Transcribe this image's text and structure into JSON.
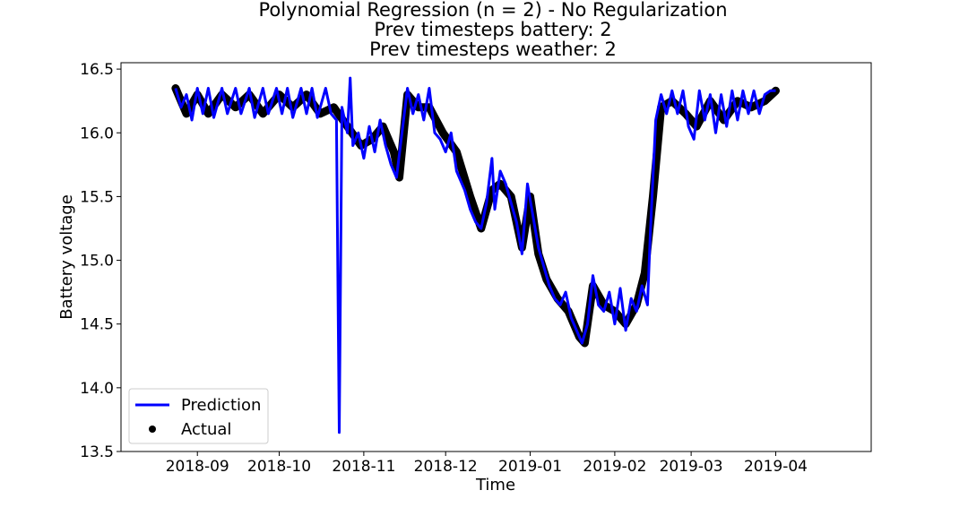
{
  "chart_data": {
    "type": "line",
    "title": [
      "Polynomial Regression (n = 2) - No Regularization",
      "Prev timesteps battery: 2",
      "Prev timesteps weather: 2"
    ],
    "xlabel": "Time",
    "ylabel": "Battery voltage",
    "ylim": [
      13.5,
      16.55
    ],
    "xlim": [
      "2018-08-04",
      "2019-05-06"
    ],
    "x_ticks": [
      "2018-09",
      "2018-10",
      "2018-11",
      "2018-12",
      "2019-01",
      "2019-02",
      "2019-03",
      "2019-04"
    ],
    "y_ticks": [
      "13.5",
      "14.0",
      "14.5",
      "15.0",
      "15.5",
      "16.0",
      "16.5"
    ],
    "grid": false,
    "legend": {
      "placement": "lower-left",
      "entries": [
        "Prediction",
        "Actual"
      ]
    },
    "colors": {
      "prediction": "#0000ff",
      "actual": "#000000"
    },
    "series": [
      {
        "name": "Actual",
        "marker": "dot",
        "points": [
          [
            "2018-08-24",
            16.35
          ],
          [
            "2018-08-28",
            16.15
          ],
          [
            "2018-09-01",
            16.3
          ],
          [
            "2018-09-05",
            16.15
          ],
          [
            "2018-09-10",
            16.3
          ],
          [
            "2018-09-15",
            16.2
          ],
          [
            "2018-09-20",
            16.3
          ],
          [
            "2018-09-25",
            16.15
          ],
          [
            "2018-10-01",
            16.3
          ],
          [
            "2018-10-06",
            16.2
          ],
          [
            "2018-10-11",
            16.3
          ],
          [
            "2018-10-16",
            16.15
          ],
          [
            "2018-10-21",
            16.2
          ],
          [
            "2018-10-26",
            16.05
          ],
          [
            "2018-10-31",
            15.9
          ],
          [
            "2018-11-04",
            15.95
          ],
          [
            "2018-11-08",
            16.05
          ],
          [
            "2018-11-12",
            15.85
          ],
          [
            "2018-11-14",
            15.65
          ],
          [
            "2018-11-17",
            16.3
          ],
          [
            "2018-11-21",
            16.2
          ],
          [
            "2018-11-25",
            16.2
          ],
          [
            "2018-11-30",
            16.0
          ],
          [
            "2018-12-05",
            15.85
          ],
          [
            "2018-12-10",
            15.5
          ],
          [
            "2018-12-14",
            15.25
          ],
          [
            "2018-12-18",
            15.55
          ],
          [
            "2018-12-21",
            15.6
          ],
          [
            "2018-12-25",
            15.5
          ],
          [
            "2018-12-29",
            15.1
          ],
          [
            "2019-01-01",
            15.5
          ],
          [
            "2019-01-04",
            15.05
          ],
          [
            "2019-01-07",
            14.85
          ],
          [
            "2019-01-11",
            14.7
          ],
          [
            "2019-01-15",
            14.6
          ],
          [
            "2019-01-19",
            14.4
          ],
          [
            "2019-01-21",
            14.35
          ],
          [
            "2019-01-24",
            14.8
          ],
          [
            "2019-01-28",
            14.65
          ],
          [
            "2019-02-01",
            14.6
          ],
          [
            "2019-02-05",
            14.5
          ],
          [
            "2019-02-09",
            14.65
          ],
          [
            "2019-02-12",
            14.9
          ],
          [
            "2019-02-15",
            15.5
          ],
          [
            "2019-02-18",
            16.2
          ],
          [
            "2019-02-22",
            16.25
          ],
          [
            "2019-02-27",
            16.15
          ],
          [
            "2019-03-03",
            16.05
          ],
          [
            "2019-03-08",
            16.25
          ],
          [
            "2019-03-13",
            16.1
          ],
          [
            "2019-03-18",
            16.25
          ],
          [
            "2019-03-23",
            16.2
          ],
          [
            "2019-03-28",
            16.25
          ],
          [
            "2019-04-01",
            16.33
          ]
        ]
      },
      {
        "name": "Prediction",
        "marker": "line",
        "points": [
          [
            "2018-08-24",
            16.35
          ],
          [
            "2018-08-26",
            16.2
          ],
          [
            "2018-08-28",
            16.3
          ],
          [
            "2018-08-30",
            16.1
          ],
          [
            "2018-09-01",
            16.35
          ],
          [
            "2018-09-03",
            16.15
          ],
          [
            "2018-09-05",
            16.35
          ],
          [
            "2018-09-07",
            16.12
          ],
          [
            "2018-09-10",
            16.35
          ],
          [
            "2018-09-12",
            16.15
          ],
          [
            "2018-09-15",
            16.35
          ],
          [
            "2018-09-17",
            16.15
          ],
          [
            "2018-09-20",
            16.35
          ],
          [
            "2018-09-22",
            16.12
          ],
          [
            "2018-09-25",
            16.35
          ],
          [
            "2018-09-27",
            16.15
          ],
          [
            "2018-09-30",
            16.35
          ],
          [
            "2018-10-02",
            16.15
          ],
          [
            "2018-10-04",
            16.35
          ],
          [
            "2018-10-06",
            16.12
          ],
          [
            "2018-10-09",
            16.35
          ],
          [
            "2018-10-11",
            16.15
          ],
          [
            "2018-10-13",
            16.35
          ],
          [
            "2018-10-15",
            16.12
          ],
          [
            "2018-10-18",
            16.35
          ],
          [
            "2018-10-20",
            16.15
          ],
          [
            "2018-10-22",
            16.1
          ],
          [
            "2018-10-23",
            13.65
          ],
          [
            "2018-10-24",
            16.2
          ],
          [
            "2018-10-26",
            16.0
          ],
          [
            "2018-10-27",
            16.43
          ],
          [
            "2018-10-28",
            15.9
          ],
          [
            "2018-10-30",
            16.0
          ],
          [
            "2018-11-01",
            15.8
          ],
          [
            "2018-11-03",
            16.05
          ],
          [
            "2018-11-05",
            15.85
          ],
          [
            "2018-11-07",
            16.1
          ],
          [
            "2018-11-09",
            15.9
          ],
          [
            "2018-11-11",
            15.75
          ],
          [
            "2018-11-13",
            15.65
          ],
          [
            "2018-11-15",
            16.0
          ],
          [
            "2018-11-17",
            16.35
          ],
          [
            "2018-11-19",
            16.15
          ],
          [
            "2018-11-21",
            16.3
          ],
          [
            "2018-11-23",
            16.1
          ],
          [
            "2018-11-25",
            16.35
          ],
          [
            "2018-11-27",
            16.0
          ],
          [
            "2018-11-29",
            15.95
          ],
          [
            "2018-12-01",
            15.85
          ],
          [
            "2018-12-03",
            16.0
          ],
          [
            "2018-12-05",
            15.7
          ],
          [
            "2018-12-08",
            15.55
          ],
          [
            "2018-12-10",
            15.4
          ],
          [
            "2018-12-12",
            15.3
          ],
          [
            "2018-12-14",
            15.25
          ],
          [
            "2018-12-16",
            15.45
          ],
          [
            "2018-12-18",
            15.8
          ],
          [
            "2018-12-19",
            15.4
          ],
          [
            "2018-12-21",
            15.7
          ],
          [
            "2018-12-23",
            15.6
          ],
          [
            "2018-12-25",
            15.45
          ],
          [
            "2018-12-27",
            15.3
          ],
          [
            "2018-12-29",
            15.05
          ],
          [
            "2018-12-31",
            15.6
          ],
          [
            "2019-01-02",
            15.35
          ],
          [
            "2019-01-04",
            15.1
          ],
          [
            "2019-01-06",
            14.95
          ],
          [
            "2019-01-08",
            14.8
          ],
          [
            "2019-01-10",
            14.7
          ],
          [
            "2019-01-12",
            14.65
          ],
          [
            "2019-01-14",
            14.75
          ],
          [
            "2019-01-16",
            14.55
          ],
          [
            "2019-01-18",
            14.45
          ],
          [
            "2019-01-20",
            14.35
          ],
          [
            "2019-01-22",
            14.5
          ],
          [
            "2019-01-24",
            14.88
          ],
          [
            "2019-01-26",
            14.65
          ],
          [
            "2019-01-28",
            14.6
          ],
          [
            "2019-01-30",
            14.75
          ],
          [
            "2019-02-01",
            14.5
          ],
          [
            "2019-02-03",
            14.78
          ],
          [
            "2019-02-05",
            14.45
          ],
          [
            "2019-02-07",
            14.7
          ],
          [
            "2019-02-09",
            14.6
          ],
          [
            "2019-02-11",
            14.8
          ],
          [
            "2019-02-13",
            14.65
          ],
          [
            "2019-02-14",
            15.2
          ],
          [
            "2019-02-15",
            15.65
          ],
          [
            "2019-02-16",
            16.1
          ],
          [
            "2019-02-18",
            16.3
          ],
          [
            "2019-02-20",
            16.15
          ],
          [
            "2019-02-22",
            16.33
          ],
          [
            "2019-02-24",
            16.15
          ],
          [
            "2019-02-26",
            16.33
          ],
          [
            "2019-02-28",
            16.05
          ],
          [
            "2019-03-02",
            15.95
          ],
          [
            "2019-03-04",
            16.33
          ],
          [
            "2019-03-06",
            16.1
          ],
          [
            "2019-03-08",
            16.3
          ],
          [
            "2019-03-10",
            16.0
          ],
          [
            "2019-03-12",
            16.3
          ],
          [
            "2019-03-14",
            16.05
          ],
          [
            "2019-03-16",
            16.33
          ],
          [
            "2019-03-18",
            16.1
          ],
          [
            "2019-03-20",
            16.33
          ],
          [
            "2019-03-22",
            16.15
          ],
          [
            "2019-03-24",
            16.33
          ],
          [
            "2019-03-26",
            16.15
          ],
          [
            "2019-03-28",
            16.3
          ],
          [
            "2019-03-30",
            16.33
          ],
          [
            "2019-04-01",
            16.33
          ]
        ]
      }
    ]
  }
}
